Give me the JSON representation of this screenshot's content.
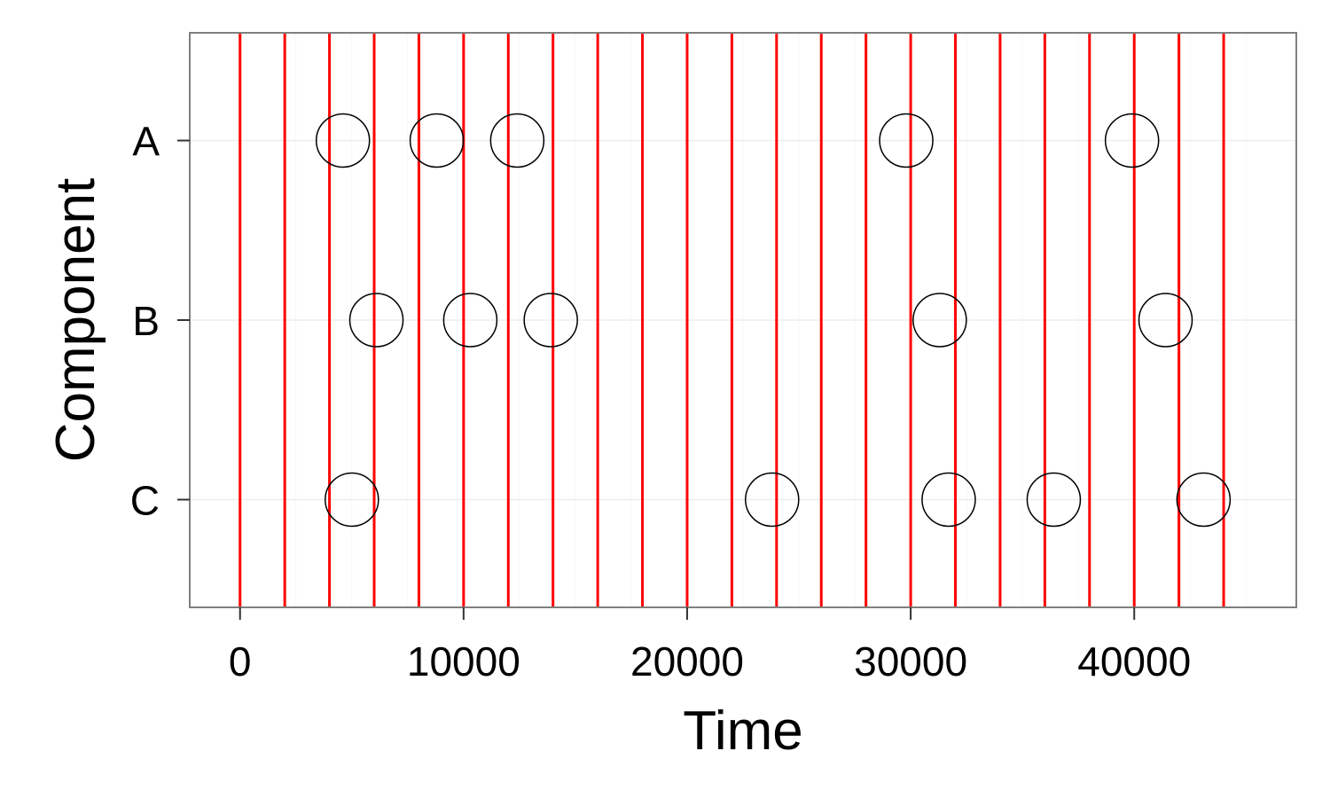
{
  "chart_data": {
    "type": "scatter",
    "title": "",
    "xlabel": "Time",
    "ylabel": "Component",
    "xlim": [
      -2250,
      47250
    ],
    "x_ticks": [
      0,
      10000,
      20000,
      30000,
      40000
    ],
    "x_tick_labels": [
      "0",
      "10000",
      "20000",
      "30000",
      "40000"
    ],
    "categories": [
      "A",
      "B",
      "C"
    ],
    "grid": true,
    "marker": "hollow-circle",
    "colors": {
      "vertical_lines": "#ff0000",
      "points": "#000000",
      "panel_border": "#7f7f7f",
      "grid": "#ebebeb"
    },
    "vertical_lines": [
      0,
      2000,
      4000,
      6000,
      8000,
      10000,
      12000,
      14000,
      16000,
      18000,
      20000,
      22000,
      24000,
      26000,
      28000,
      30000,
      32000,
      34000,
      36000,
      38000,
      40000,
      42000,
      44000
    ],
    "series": [
      {
        "category": "A",
        "x": [
          4600,
          8800,
          12400,
          29800,
          39900
        ]
      },
      {
        "category": "B",
        "x": [
          6100,
          10300,
          13900,
          31300,
          41400
        ]
      },
      {
        "category": "C",
        "x": [
          5000,
          23800,
          31700,
          36400,
          43100
        ]
      }
    ]
  }
}
